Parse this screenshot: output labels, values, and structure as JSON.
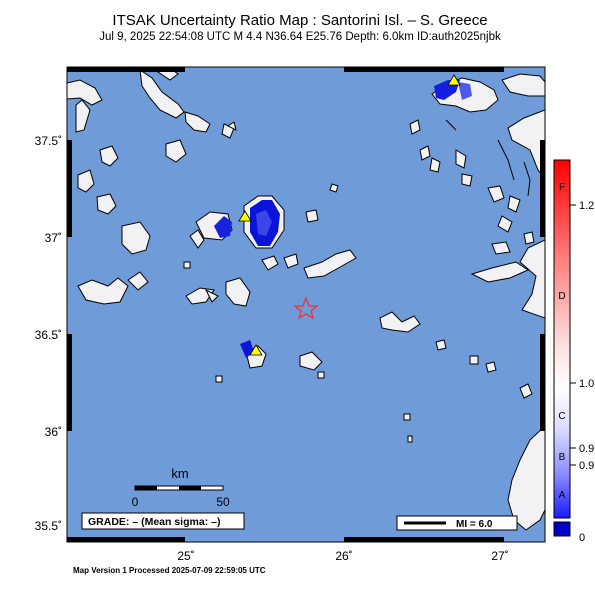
{
  "header": {
    "title": "ITSAK Uncertainty Ratio Map : Santorini Isl. – S. Greece",
    "subtitle": "Jul  9, 2025 22:54:08 UTC   M 4.4   N36.64 E25.76   Depth: 6.0km   ID:auth2025njbk"
  },
  "footer": "Map Version 1 Processed 2025-07-09 22:59:05 UTC",
  "map": {
    "sea_color": "#6f9bd8",
    "land_color": "#f2f2f4",
    "epicenter": {
      "lat": 36.64,
      "lon": 25.76,
      "icon": "star-icon",
      "color": "#e8323c"
    },
    "stations": [
      {
        "icon": "triangle-icon",
        "lat": 37.09,
        "lon": 25.38
      },
      {
        "icon": "triangle-icon",
        "lat": 37.8,
        "lon": 26.7
      },
      {
        "icon": "triangle-icon",
        "lat": 36.42,
        "lon": 25.43
      }
    ],
    "lon_ticks": [
      "25˚",
      "26˚",
      "27˚"
    ],
    "lat_ticks": [
      "37.5˚",
      "37˚",
      "36.5˚",
      "36˚",
      "35.5˚"
    ]
  },
  "scale_bar": {
    "unit": "km",
    "start": "0",
    "end": "50"
  },
  "grade_box": {
    "text": "GRADE: – (Mean sigma: –)"
  },
  "mi_legend": {
    "text": "MI = 6.0"
  },
  "colorbar": {
    "value_labels": [
      "1.2",
      "1.0",
      "0.9",
      "0.9",
      "0"
    ],
    "grade_labels": [
      "F",
      "D",
      "C",
      "B",
      "A"
    ],
    "colors": [
      "#0000c8",
      "#ffffff",
      "#ff0000"
    ]
  }
}
